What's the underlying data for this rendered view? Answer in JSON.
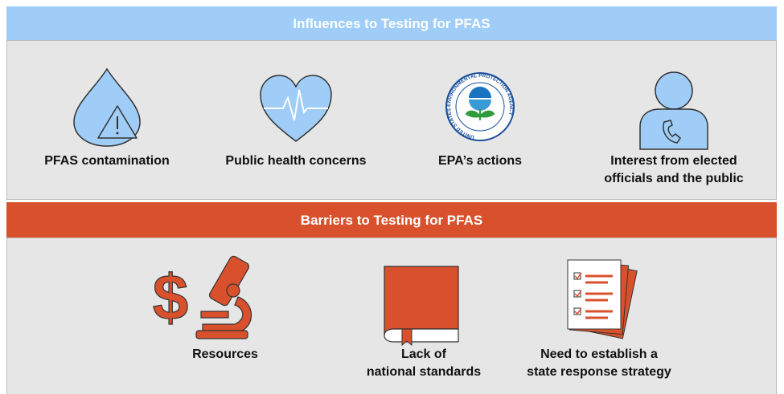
{
  "influences": {
    "title": "Influences to Testing for PFAS",
    "items": [
      {
        "lines": [
          "PFAS contamination"
        ]
      },
      {
        "lines": [
          "Public health concerns"
        ]
      },
      {
        "lines": [
          "EPA’s actions"
        ],
        "seal_text": "UNITED STATES ENVIRONMENTAL PROTECTION AGENCY"
      },
      {
        "lines": [
          "Interest from elected",
          "officials and the public"
        ]
      }
    ]
  },
  "barriers": {
    "title": "Barriers to Testing for PFAS",
    "items": [
      {
        "lines": [
          "Resources"
        ]
      },
      {
        "lines": [
          "Lack of",
          "national standards"
        ]
      },
      {
        "lines": [
          "Need to establish a",
          "state response strategy"
        ]
      }
    ]
  }
}
